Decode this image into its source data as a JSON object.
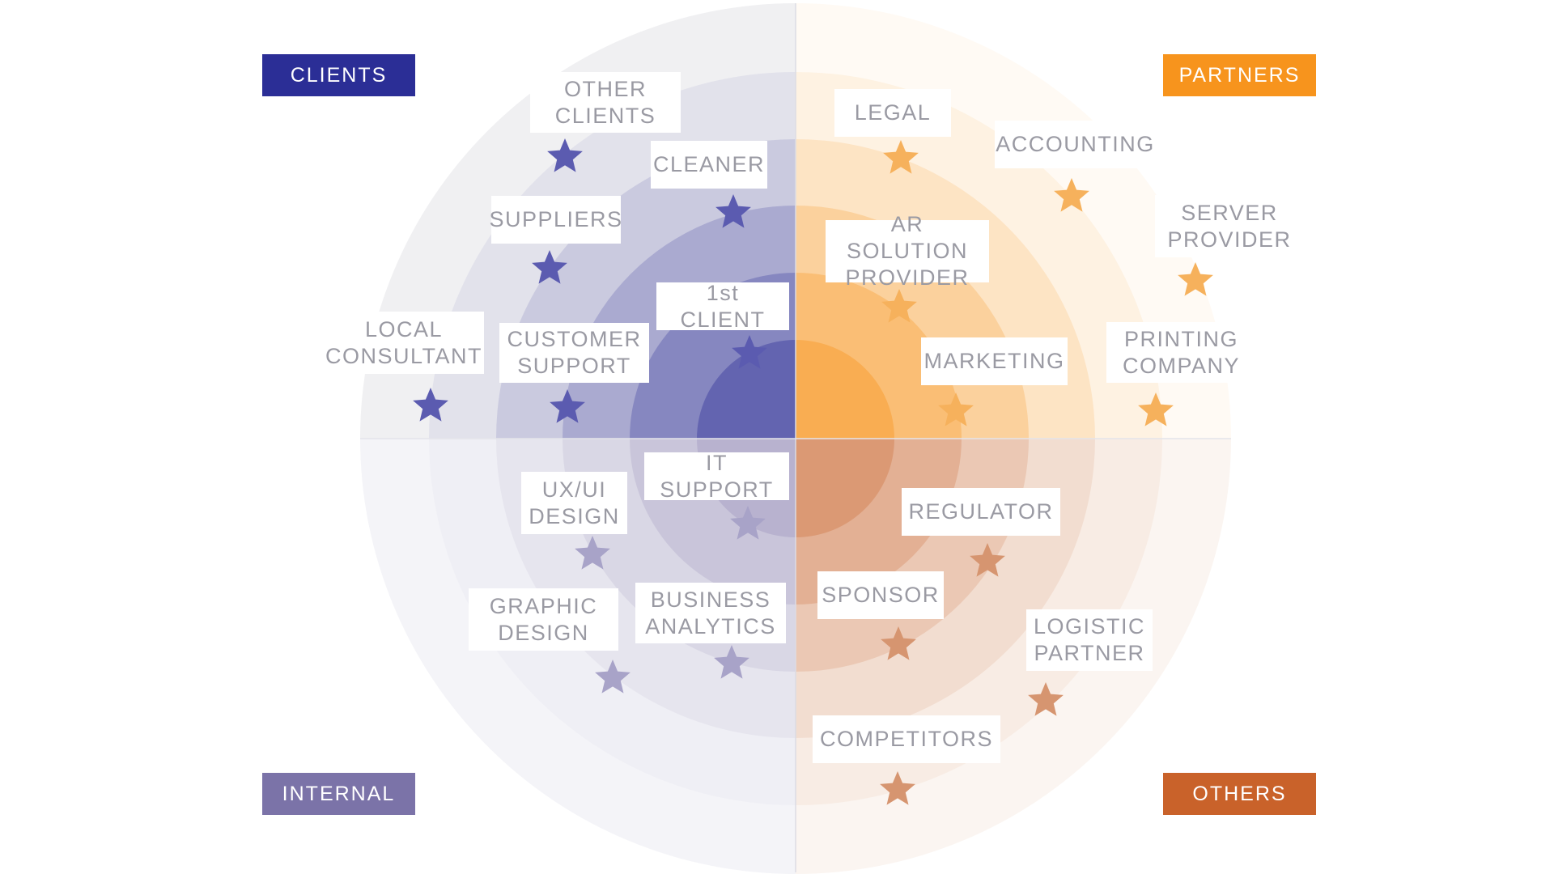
{
  "colors": {
    "clients": "#2b2e96",
    "partners": "#f7941d",
    "internal": "#7b73a8",
    "others": "#c9622a",
    "star_clients": "#5b5bb0",
    "star_partners": "#f6b15c",
    "star_internal": "#a8a3c8",
    "star_others": "#d69570",
    "label_text": "#9a9aa3"
  },
  "quadrants": {
    "clients": "CLIENTS",
    "partners": "PARTNERS",
    "internal": "INTERNAL",
    "others": "OTHERS"
  },
  "stakeholders": [
    {
      "id": "other-clients",
      "quadrant": "clients",
      "label": "OTHER\nCLIENTS",
      "icon": "star-icon"
    },
    {
      "id": "cleaner",
      "quadrant": "clients",
      "label": "CLEANER",
      "icon": "star-icon"
    },
    {
      "id": "suppliers",
      "quadrant": "clients",
      "label": "SUPPLIERS",
      "icon": "star-icon"
    },
    {
      "id": "1st-client",
      "quadrant": "clients",
      "label": "1st CLIENT",
      "icon": "star-icon"
    },
    {
      "id": "local-consultant",
      "quadrant": "clients",
      "label": "LOCAL\nCONSULTANT",
      "icon": "star-icon"
    },
    {
      "id": "customer-support",
      "quadrant": "clients",
      "label": "CUSTOMER\nSUPPORT",
      "icon": "star-icon"
    },
    {
      "id": "legal",
      "quadrant": "partners",
      "label": "LEGAL",
      "icon": "star-icon"
    },
    {
      "id": "accounting",
      "quadrant": "partners",
      "label": "ACCOUNTING",
      "icon": "star-icon"
    },
    {
      "id": "server-provider",
      "quadrant": "partners",
      "label": "SERVER\nPROVIDER",
      "icon": "star-icon"
    },
    {
      "id": "ar-solution-provider",
      "quadrant": "partners",
      "label": "AR SOLUTION\nPROVIDER",
      "icon": "star-icon"
    },
    {
      "id": "marketing",
      "quadrant": "partners",
      "label": "MARKETING",
      "icon": "star-icon"
    },
    {
      "id": "printing-company",
      "quadrant": "partners",
      "label": "PRINTING\nCOMPANY",
      "icon": "star-icon"
    },
    {
      "id": "it-support",
      "quadrant": "internal",
      "label": "IT SUPPORT",
      "icon": "star-icon"
    },
    {
      "id": "ux-ui-design",
      "quadrant": "internal",
      "label": "UX/UI\nDESIGN",
      "icon": "star-icon"
    },
    {
      "id": "graphic-design",
      "quadrant": "internal",
      "label": "GRAPHIC\nDESIGN",
      "icon": "star-icon"
    },
    {
      "id": "business-analytics",
      "quadrant": "internal",
      "label": "BUSINESS\nANALYTICS",
      "icon": "star-icon"
    },
    {
      "id": "regulator",
      "quadrant": "others",
      "label": "REGULATOR",
      "icon": "star-icon"
    },
    {
      "id": "sponsor",
      "quadrant": "others",
      "label": "SPONSOR",
      "icon": "star-icon"
    },
    {
      "id": "logistic-partner",
      "quadrant": "others",
      "label": "LOGISTIC\nPARTNER",
      "icon": "star-icon"
    },
    {
      "id": "competitors",
      "quadrant": "others",
      "label": "COMPETITORS",
      "icon": "star-icon"
    }
  ]
}
